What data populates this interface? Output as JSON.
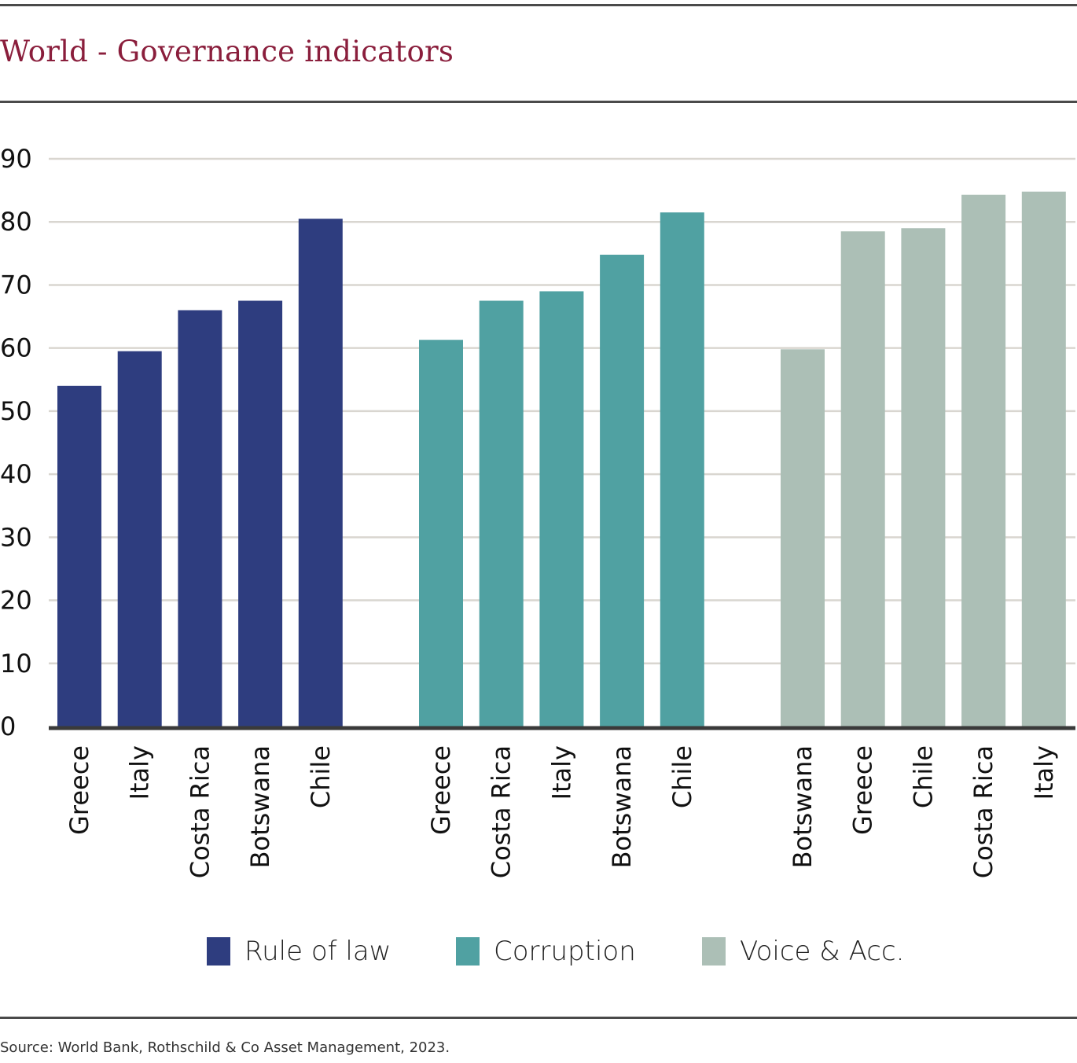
{
  "title": "World - Governance indicators",
  "source": "Source: World Bank, Rothschild & Co Asset Management, 2023.",
  "colors": {
    "title": "#8a1e3c",
    "rule_of_law": "#2e3d7f",
    "corruption": "#50a1a2",
    "voice_acc": "#acbfb6",
    "grid": "#d9d6d0",
    "axis": "#3a3a3a"
  },
  "chart_data": {
    "type": "bar",
    "title": "World - Governance indicators",
    "xlabel": "",
    "ylabel": "",
    "ylim": [
      0,
      90
    ],
    "yticks": [
      0,
      10,
      20,
      30,
      40,
      50,
      60,
      70,
      80,
      90
    ],
    "grid": true,
    "legend_position": "bottom",
    "groups": [
      {
        "name": "Rule of law",
        "color": "#2e3d7f",
        "categories": [
          "Greece",
          "Italy",
          "Costa Rica",
          "Botswana",
          "Chile"
        ],
        "values": [
          54,
          59.5,
          66,
          67.5,
          80.5
        ]
      },
      {
        "name": "Corruption",
        "color": "#50a1a2",
        "categories": [
          "Greece",
          "Costa Rica",
          "Italy",
          "Botswana",
          "Chile"
        ],
        "values": [
          61.3,
          67.5,
          69,
          74.8,
          81.5
        ]
      },
      {
        "name": "Voice & Acc.",
        "color": "#acbfb6",
        "categories": [
          "Botswana",
          "Greece",
          "Chile",
          "Costa Rica",
          "Italy"
        ],
        "values": [
          59.8,
          78.5,
          79,
          84.3,
          84.8
        ]
      }
    ]
  }
}
